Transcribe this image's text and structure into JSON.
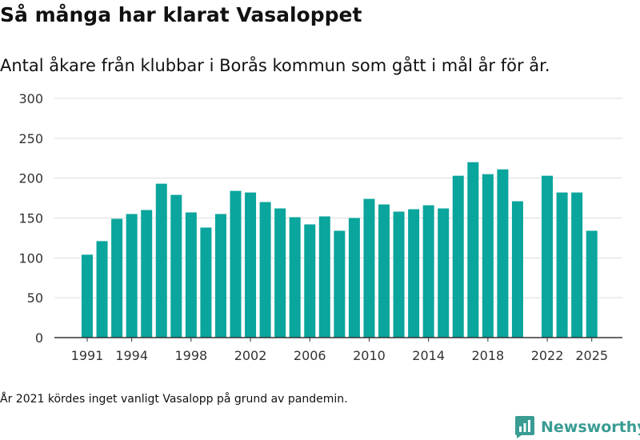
{
  "header": {
    "title": "Så många har klarat Vasaloppet",
    "subtitle": "Antal åkare från klubbar i Borås kommun som gått i mål år för år."
  },
  "footer": {
    "note": "År 2021 kördes inget vanligt Vasalopp på grund av pandemin.",
    "brand": "Newsworthy",
    "brand_icon": "bar-chart-logo-icon"
  },
  "colors": {
    "bar": "#0aa59c",
    "grid": "#dddddd",
    "axis": "#333333",
    "brand": "#3a9c93"
  },
  "chart_data": {
    "type": "bar",
    "title": "Så många har klarat Vasaloppet",
    "xlabel": "",
    "ylabel": "",
    "ylim": [
      0,
      300
    ],
    "yticks": [
      0,
      50,
      100,
      150,
      200,
      250,
      300
    ],
    "xticks": [
      1991,
      1994,
      1998,
      2002,
      2006,
      2010,
      2014,
      2018,
      2022,
      2025
    ],
    "categories": [
      1991,
      1992,
      1993,
      1994,
      1995,
      1996,
      1997,
      1998,
      1999,
      2000,
      2001,
      2002,
      2003,
      2004,
      2005,
      2006,
      2007,
      2008,
      2009,
      2010,
      2011,
      2012,
      2013,
      2014,
      2015,
      2016,
      2017,
      2018,
      2019,
      2020,
      2021,
      2022,
      2023,
      2024,
      2025
    ],
    "values": [
      104,
      121,
      149,
      155,
      160,
      193,
      179,
      157,
      138,
      155,
      184,
      182,
      170,
      162,
      151,
      142,
      152,
      134,
      150,
      174,
      167,
      158,
      161,
      166,
      162,
      203,
      220,
      205,
      211,
      171,
      null,
      203,
      182,
      182,
      134
    ],
    "grid": true
  }
}
